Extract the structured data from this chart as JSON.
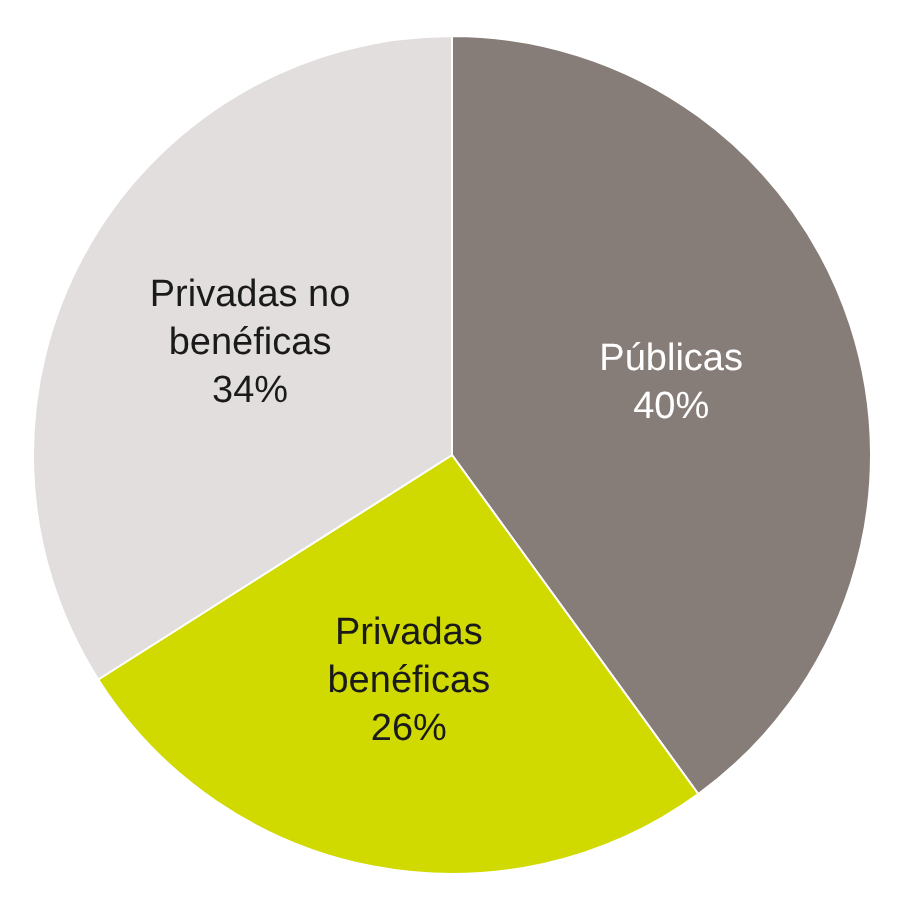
{
  "chart_data": {
    "type": "pie",
    "categories": [
      "Públicas",
      "Privadas benéficas",
      "Privadas no benéficas"
    ],
    "values": [
      40,
      26,
      34
    ],
    "colors": [
      "#877d78",
      "#d0da00",
      "#e1dedd"
    ],
    "value_labels": [
      "40%",
      "26%",
      "34%"
    ],
    "legend": false
  }
}
